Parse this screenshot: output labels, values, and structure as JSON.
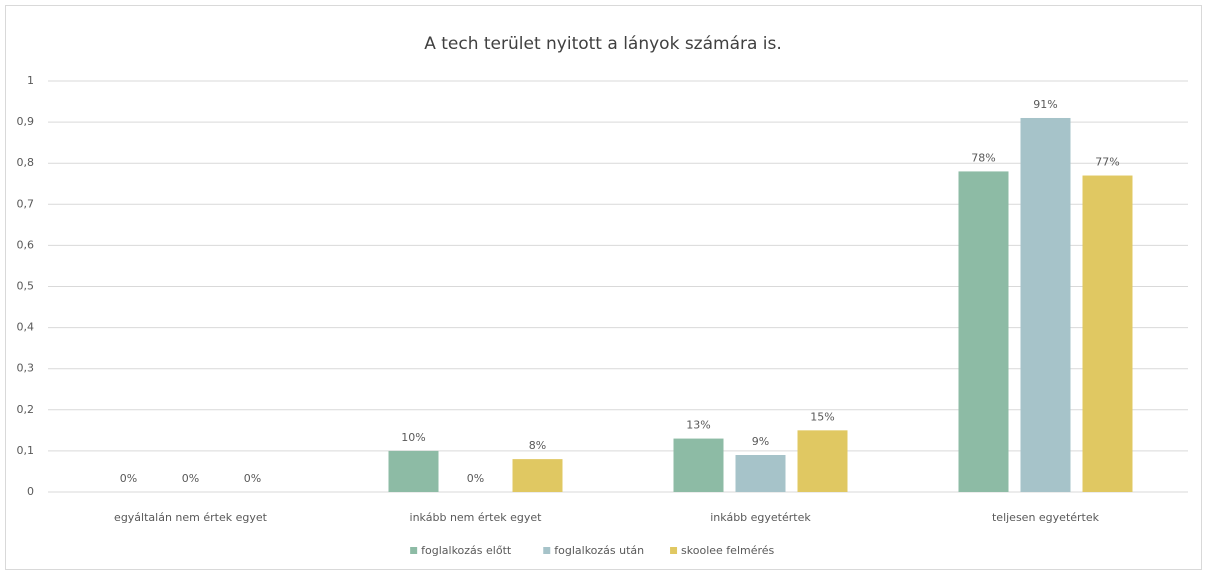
{
  "chart_data": {
    "type": "bar",
    "title": "A tech terület nyitott a lányok számára is.",
    "categories": [
      "egyáltalán  nem értek egyet",
      "inkább nem értek egyet",
      "inkább egyetértek",
      "teljesen egyetértek"
    ],
    "series": [
      {
        "name": "foglalkozás előtt",
        "color": "#8dbba5",
        "values": [
          0,
          0.1,
          0.13,
          0.78
        ],
        "value_labels": [
          "0%",
          "10%",
          "13%",
          "78%"
        ]
      },
      {
        "name": "foglalkozás után",
        "color": "#a6c3c9",
        "values": [
          0,
          0,
          0.09,
          0.91
        ],
        "value_labels": [
          "0%",
          "0%",
          "9%",
          "91%"
        ]
      },
      {
        "name": "skoolee felmérés",
        "color": "#e0c862",
        "values": [
          0,
          0.08,
          0.15,
          0.77
        ],
        "value_labels": [
          "0%",
          "8%",
          "15%",
          "77%"
        ]
      }
    ],
    "ylim": [
      0,
      1
    ],
    "yticks": [
      0,
      {
        "value": 0.1,
        "label": "0,1"
      },
      {
        "value": 0.2,
        "label": "0,2"
      },
      {
        "value": 0.3,
        "label": "0,3"
      },
      {
        "value": 0.4,
        "label": "0,4"
      },
      {
        "value": 0.5,
        "label": "0,5"
      },
      {
        "value": 0.6,
        "label": "0,6"
      },
      {
        "value": 0.7,
        "label": "0,7"
      },
      {
        "value": 0.8,
        "label": "0,8"
      },
      {
        "value": 0.9,
        "label": "0,9"
      },
      1
    ],
    "grid": true,
    "legend": "bottom"
  }
}
